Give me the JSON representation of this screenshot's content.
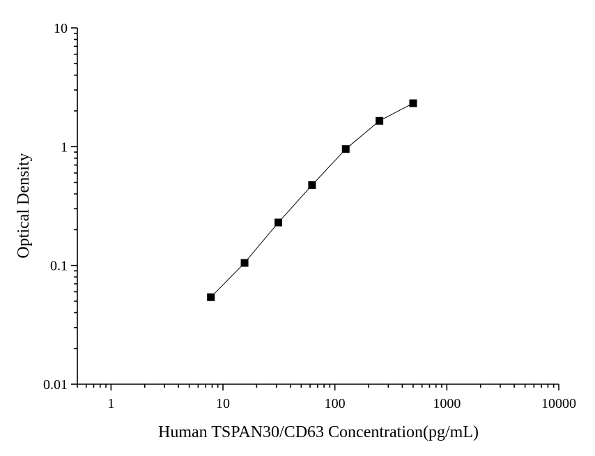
{
  "chart_data": {
    "type": "line",
    "xlabel": "Human TSPAN30/CD63 Concentration(pg/mL)",
    "ylabel": "Optical Density",
    "xscale": "log",
    "yscale": "log",
    "xlim": [
      0.5,
      10000
    ],
    "ylim": [
      0.01,
      10
    ],
    "x_ticks": [
      1,
      10,
      100,
      1000,
      10000
    ],
    "x_tick_labels": [
      "1",
      "10",
      "100",
      "1000",
      "10000"
    ],
    "y_ticks": [
      0.01,
      0.1,
      1,
      10
    ],
    "y_tick_labels": [
      "0.01",
      "0.1",
      "1",
      "10"
    ],
    "grid": false,
    "marker": "square",
    "series": [
      {
        "x": [
          7.8,
          15.6,
          31.25,
          62.5,
          125,
          250,
          500
        ],
        "y": [
          0.054,
          0.105,
          0.23,
          0.475,
          0.955,
          1.65,
          2.32
        ]
      }
    ],
    "colors": {
      "line": "#000000",
      "marker": "#000000",
      "axis": "#000000"
    }
  }
}
